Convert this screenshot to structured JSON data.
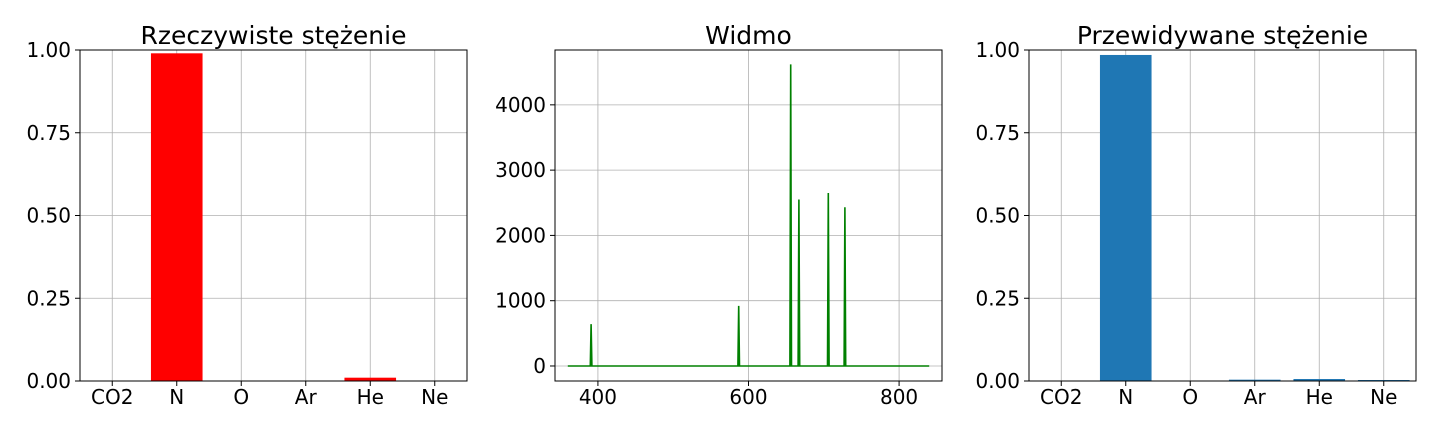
{
  "chart_data": [
    {
      "type": "bar",
      "title": "Rzeczywiste stężenie",
      "xlabel": "",
      "ylabel": "",
      "categories": [
        "CO2",
        "N",
        "O",
        "Ar",
        "He",
        "Ne"
      ],
      "values": [
        0.0,
        0.99,
        0.0,
        0.0,
        0.01,
        0.0
      ],
      "ylim": [
        0,
        1.0
      ],
      "yticks": [
        0.0,
        0.25,
        0.5,
        0.75,
        1.0
      ],
      "ytick_labels": [
        "0.00",
        "0.25",
        "0.50",
        "0.75",
        "1.00"
      ],
      "color": "#ff0000",
      "grid": true
    },
    {
      "type": "line",
      "title": "Widmo",
      "xlabel": "",
      "ylabel": "",
      "x_range": [
        360,
        840
      ],
      "xlim": [
        343,
        857
      ],
      "ylim": [
        -230,
        4840
      ],
      "xticks": [
        400,
        600,
        800
      ],
      "xtick_labels": [
        "400",
        "600",
        "800"
      ],
      "yticks": [
        0,
        1000,
        2000,
        3000,
        4000
      ],
      "ytick_labels": [
        "0",
        "1000",
        "2000",
        "3000",
        "4000"
      ],
      "peaks": [
        {
          "x": 391,
          "y": 640
        },
        {
          "x": 587,
          "y": 920
        },
        {
          "x": 656,
          "y": 4620
        },
        {
          "x": 667,
          "y": 2550
        },
        {
          "x": 706,
          "y": 2650
        },
        {
          "x": 728,
          "y": 2430
        }
      ],
      "color": "#008000",
      "grid": true
    },
    {
      "type": "bar",
      "title": "Przewidywane stężenie",
      "xlabel": "",
      "ylabel": "",
      "categories": [
        "CO2",
        "N",
        "O",
        "Ar",
        "He",
        "Ne"
      ],
      "values": [
        0.0,
        0.985,
        0.0,
        0.004,
        0.006,
        0.003
      ],
      "ylim": [
        0,
        1.0
      ],
      "yticks": [
        0.0,
        0.25,
        0.5,
        0.75,
        1.0
      ],
      "ytick_labels": [
        "0.00",
        "0.25",
        "0.50",
        "0.75",
        "1.00"
      ],
      "color": "#1f77b4",
      "grid": true
    }
  ]
}
